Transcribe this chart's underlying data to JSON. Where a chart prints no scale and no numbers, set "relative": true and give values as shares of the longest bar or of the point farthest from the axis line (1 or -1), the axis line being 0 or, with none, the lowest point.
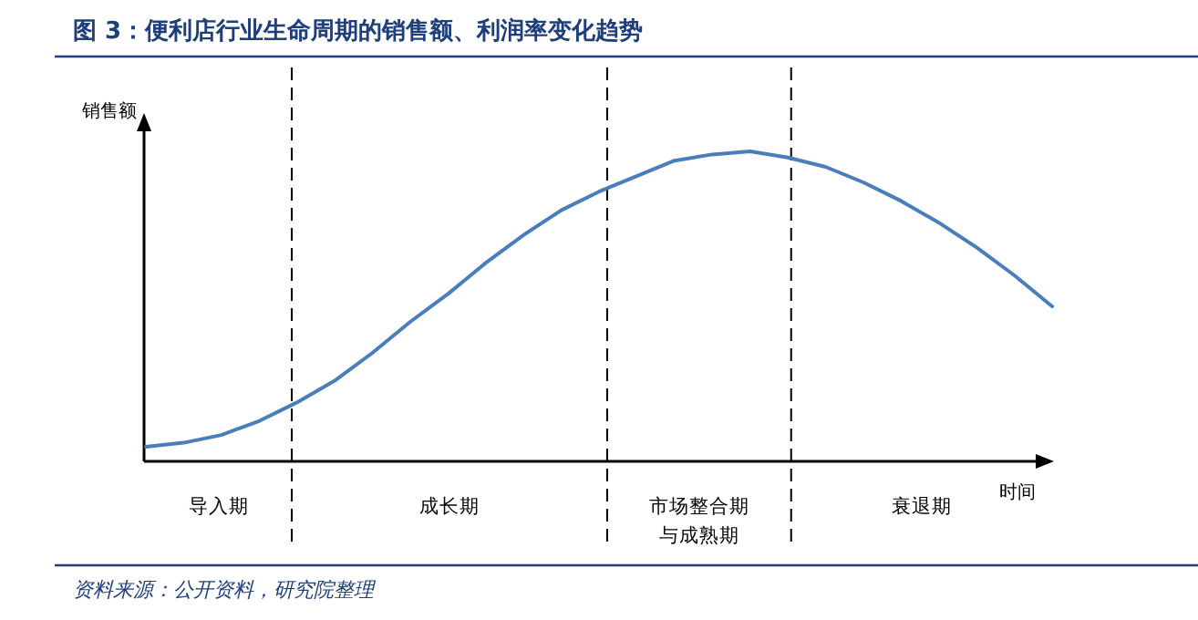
{
  "chart_data": {
    "type": "line",
    "title": "图 3：便利店行业生命周期的销售额、利润率变化趋势",
    "ylabel": "销售额",
    "xlabel": "时间",
    "relative": true,
    "marker": "none",
    "line_style": "solid",
    "categories": [
      null,
      null,
      null,
      null,
      null,
      null,
      null,
      null,
      null,
      null,
      null,
      null,
      null,
      null,
      null,
      null,
      null,
      null,
      null,
      null,
      null,
      null,
      null,
      null,
      null
    ],
    "series": [
      {
        "color": "#4a7ebb",
        "values": [
          0.047,
          0.06,
          0.085,
          0.13,
          0.19,
          0.26,
          0.35,
          0.45,
          0.54,
          0.64,
          0.73,
          0.81,
          0.87,
          0.92,
          0.97,
          0.99,
          1,
          0.98,
          0.95,
          0.9,
          0.84,
          0.77,
          0.69,
          0.6,
          0.5
        ]
      }
    ],
    "annotations": [
      "导入期",
      "成长期",
      "市场整合期与成熟期",
      "衰退期",
      "资料来源：公开资料，研究院整理"
    ]
  }
}
